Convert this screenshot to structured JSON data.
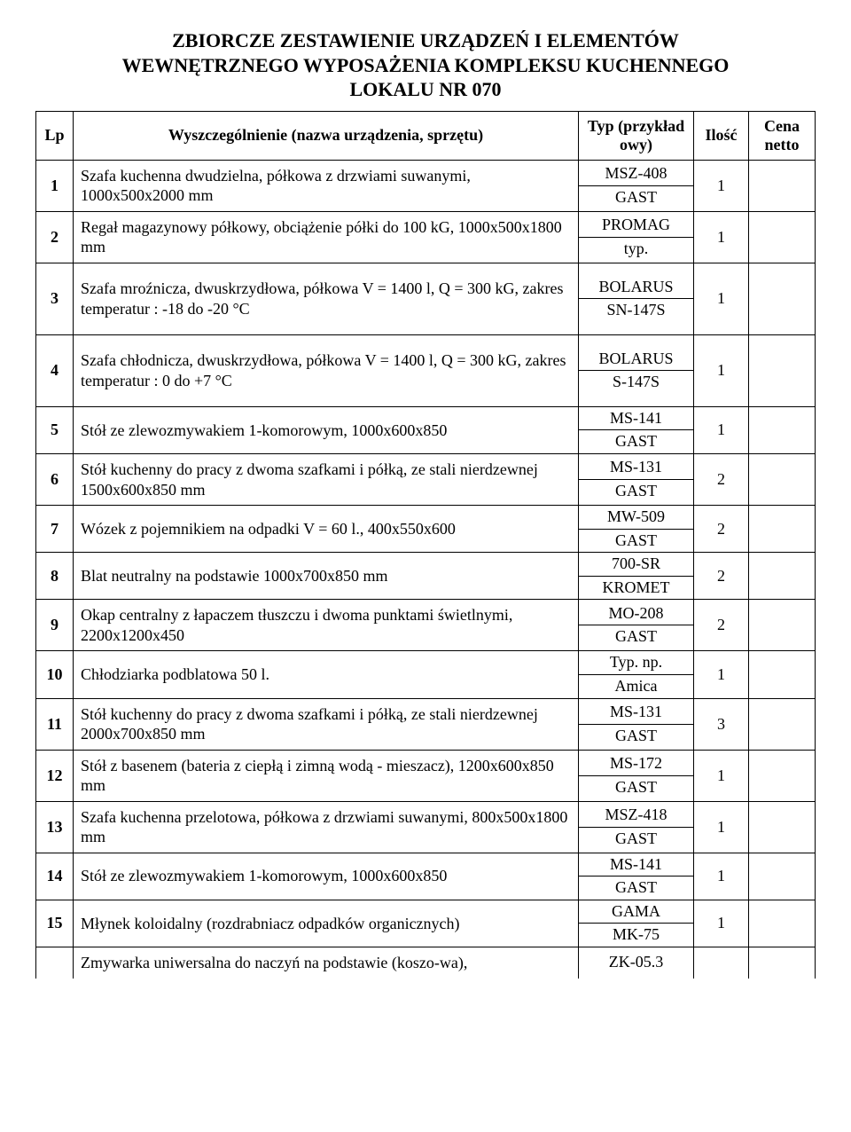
{
  "title_lines": [
    "ZBIORCZE ZESTAWIENIE URZĄDZEŃ I ELEMENTÓW",
    "WEWNĘTRZNEGO WYPOSAŻENIA KOMPLEKSU KUCHENNEGO",
    "LOKALU NR 070"
  ],
  "headers": {
    "lp": "Lp",
    "desc": "Wyszczególnienie  (nazwa urządzenia, sprzętu)",
    "typ": "Typ (przykład owy)",
    "qty": "Ilość",
    "cena": "Cena netto"
  },
  "rows": [
    {
      "lp": "1",
      "desc": "Szafa kuchenna dwudzielna, półkowa z drzwiami suwanymi, 1000x500x2000 mm",
      "typ1": "MSZ-408",
      "typ2": "GAST",
      "qty": "1"
    },
    {
      "lp": "2",
      "desc": "Regał magazynowy półkowy, obciążenie półki do 100 kG, 1000x500x1800 mm",
      "typ1": "PROMAG",
      "typ2": "typ.",
      "qty": "1"
    },
    {
      "lp": "3",
      "desc": "Szafa mroźnicza, dwuskrzydłowa, półkowa  V = 1400 l, Q = 300 kG, zakres temperatur :  -18 do -20 °C",
      "typ1": "BOLARUS",
      "typ2": "SN-147S",
      "qty": "1",
      "tall": true
    },
    {
      "lp": "4",
      "desc": "Szafa chłodnicza, dwuskrzydłowa, półkowa  V = 1400 l, Q = 300 kG, zakres temperatur :  0 do +7 °C",
      "typ1": "BOLARUS",
      "typ2": "S-147S",
      "qty": "1",
      "tall": true
    },
    {
      "lp": "5",
      "desc": "Stół ze zlewozmywakiem 1-komorowym, 1000x600x850",
      "typ1": "MS-141",
      "typ2": "GAST",
      "qty": "1"
    },
    {
      "lp": "6",
      "desc": "Stół kuchenny do pracy z dwoma szafkami i półką, ze stali nierdzewnej 1500x600x850 mm",
      "typ1": "MS-131",
      "typ2": "GAST",
      "qty": "2"
    },
    {
      "lp": "7",
      "desc": "Wózek z pojemnikiem na odpadki V = 60 l., 400x550x600",
      "typ1": "MW-509",
      "typ2": "GAST",
      "qty": "2"
    },
    {
      "lp": "8",
      "desc": "Blat neutralny na podstawie 1000x700x850 mm",
      "typ1": "700-SR",
      "typ2": "KROMET",
      "qty": "2"
    },
    {
      "lp": "9",
      "desc": "Okap centralny z łapaczem tłuszczu i dwoma punktami świetlnymi, 2200x1200x450",
      "typ1": "MO-208",
      "typ2": "GAST",
      "qty": "2"
    },
    {
      "lp": "10",
      "desc": "Chłodziarka podblatowa 50 l.",
      "typ1": "Typ. np.",
      "typ2": "Amica",
      "qty": "1"
    },
    {
      "lp": "11",
      "desc": "Stół kuchenny do pracy z dwoma szafkami i półką, ze stali nierdzewnej 2000x700x850 mm",
      "typ1": "MS-131",
      "typ2": "GAST",
      "qty": "3"
    },
    {
      "lp": "12",
      "desc": "Stół z basenem (bateria z ciepłą i zimną wodą - mieszacz), 1200x600x850 mm",
      "typ1": "MS-172",
      "typ2": "GAST",
      "qty": "1"
    },
    {
      "lp": "13",
      "desc": "Szafa kuchenna przelotowa, półkowa z drzwiami suwanymi, 800x500x1800 mm",
      "typ1": "MSZ-418",
      "typ2": "GAST",
      "qty": "1"
    },
    {
      "lp": "14",
      "desc": "Stół ze zlewozmywakiem 1-komorowym, 1000x600x850",
      "typ1": "MS-141",
      "typ2": "GAST",
      "qty": "1"
    },
    {
      "lp": "15",
      "desc": "Młynek koloidalny (rozdrabniacz odpadków organicznych)",
      "typ1": "GAMA",
      "typ2": "MK-75",
      "qty": "1"
    },
    {
      "lp": "",
      "desc": "Zmywarka uniwersalna do naczyń na podstawie (koszo-wa),",
      "typ1": "ZK-05.3",
      "typ2": "",
      "qty": "",
      "partial": true
    }
  ]
}
